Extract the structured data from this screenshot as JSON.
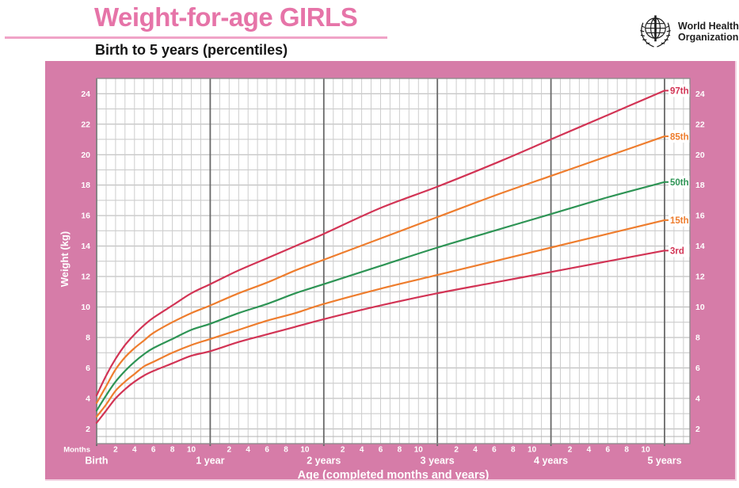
{
  "header": {
    "title": "Weight-for-age GIRLS",
    "subtitle": "Birth to 5 years (percentiles)",
    "logo": {
      "line1": "World Health",
      "line2": "Organization"
    }
  },
  "colors": {
    "panel_pink": "#d67ca8",
    "title_pink": "#e674a8",
    "rule_pink": "#f0a3c7",
    "red": "#d23455",
    "orange": "#ee7d2e",
    "green": "#2e9455",
    "grid_minor": "#cdcdcd",
    "grid_kg": "#c6c6c6",
    "grid_kg_major": "#b3b3b3",
    "grid_year": "#696969",
    "grid_border": "#8a8a8a",
    "axis_text": "#ffffff",
    "label_box": "#ffffff"
  },
  "chart_data": {
    "type": "line",
    "title": "Weight-for-age GIRLS",
    "subtitle": "Birth to 5 years (percentiles)",
    "xlabel": "Age (completed months and years)",
    "ylabel": "Weight (kg)",
    "x_unit_label": "Months",
    "xlim_months": [
      0,
      60
    ],
    "ylim": [
      1.5,
      25
    ],
    "y_ticks": [
      2,
      4,
      6,
      8,
      10,
      12,
      14,
      16,
      18,
      20,
      22,
      24
    ],
    "month_tick_labels": [
      2,
      4,
      6,
      8,
      10
    ],
    "year_labels": [
      "Birth",
      "1 year",
      "2 years",
      "3 years",
      "4 years",
      "5 years"
    ],
    "grid": true,
    "legend_position": "right-edge-labels",
    "x_months": [
      0,
      1,
      2,
      3,
      4,
      5,
      6,
      8,
      10,
      12,
      15,
      18,
      21,
      24,
      30,
      36,
      42,
      48,
      54,
      60
    ],
    "series": [
      {
        "name": "97th",
        "color": "#d23455",
        "values": [
          4.2,
          5.5,
          6.6,
          7.5,
          8.2,
          8.8,
          9.3,
          10.1,
          10.9,
          11.5,
          12.4,
          13.2,
          14.0,
          14.8,
          16.5,
          17.9,
          19.4,
          21.0,
          22.6,
          24.2
        ]
      },
      {
        "name": "85th",
        "color": "#ee7d2e",
        "values": [
          3.7,
          4.8,
          5.9,
          6.7,
          7.3,
          7.8,
          8.3,
          9.0,
          9.6,
          10.1,
          10.9,
          11.6,
          12.4,
          13.1,
          14.5,
          15.9,
          17.3,
          18.6,
          19.9,
          21.2
        ]
      },
      {
        "name": "50th",
        "color": "#2e9455",
        "values": [
          3.2,
          4.2,
          5.1,
          5.8,
          6.4,
          6.9,
          7.3,
          7.9,
          8.5,
          8.9,
          9.6,
          10.2,
          10.9,
          11.5,
          12.7,
          13.9,
          15.0,
          16.1,
          17.2,
          18.2
        ]
      },
      {
        "name": "15th",
        "color": "#ee7d2e",
        "values": [
          2.8,
          3.6,
          4.5,
          5.1,
          5.6,
          6.1,
          6.4,
          7.0,
          7.5,
          7.9,
          8.5,
          9.1,
          9.6,
          10.2,
          11.2,
          12.1,
          13.0,
          13.9,
          14.8,
          15.7
        ]
      },
      {
        "name": "3rd",
        "color": "#d23455",
        "values": [
          2.4,
          3.2,
          4.0,
          4.6,
          5.1,
          5.5,
          5.8,
          6.3,
          6.8,
          7.1,
          7.7,
          8.2,
          8.7,
          9.2,
          10.1,
          10.9,
          11.6,
          12.3,
          13.0,
          13.7
        ]
      }
    ]
  }
}
